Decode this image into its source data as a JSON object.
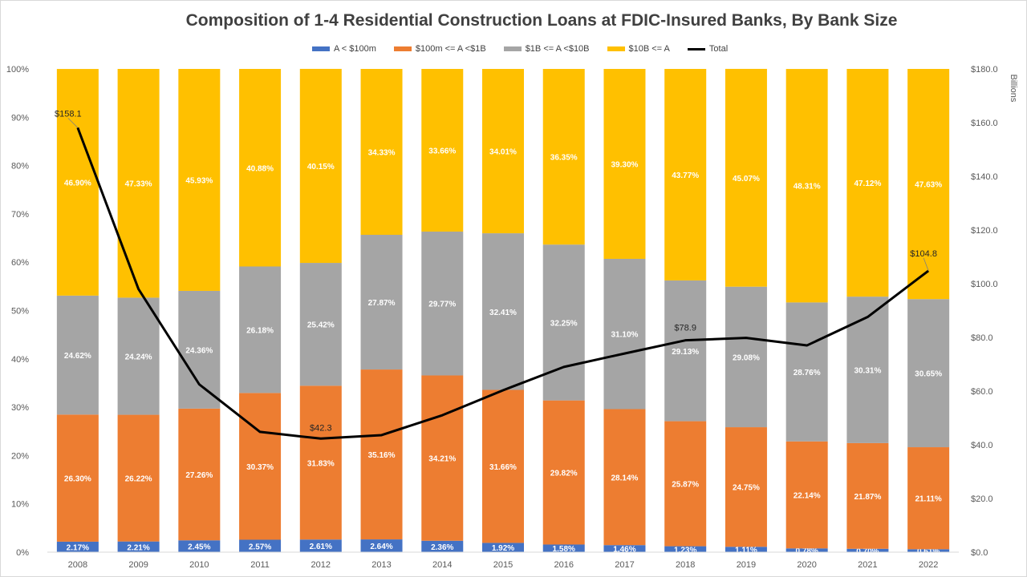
{
  "chart_data": {
    "type": "bar",
    "title": "Composition of 1-4 Residential Construction Loans at FDIC-Insured Banks, By Bank Size",
    "categories": [
      "2008",
      "2009",
      "2010",
      "2011",
      "2012",
      "2013",
      "2014",
      "2015",
      "2016",
      "2017",
      "2018",
      "2019",
      "2020",
      "2021",
      "2022"
    ],
    "series": [
      {
        "name": "A < $100m",
        "color": "#4472C4",
        "labels": [
          "2.17%",
          "2.21%",
          "2.45%",
          "2.57%",
          "2.61%",
          "2.64%",
          "2.36%",
          "1.92%",
          "1.58%",
          "1.46%",
          "1.23%",
          "1.11%",
          "0.78%",
          "0.70%",
          "0.61%"
        ],
        "values": [
          2.17,
          2.21,
          2.45,
          2.57,
          2.61,
          2.64,
          2.36,
          1.92,
          1.58,
          1.46,
          1.23,
          1.11,
          0.78,
          0.7,
          0.61
        ]
      },
      {
        "name": "$100m <= A <$1B",
        "color": "#ED7D31",
        "labels": [
          "26.30%",
          "26.22%",
          "27.26%",
          "30.37%",
          "31.83%",
          "35.16%",
          "34.21%",
          "31.66%",
          "29.82%",
          "28.14%",
          "25.87%",
          "24.75%",
          "22.14%",
          "21.87%",
          "21.11%"
        ],
        "values": [
          26.3,
          26.22,
          27.26,
          30.37,
          31.83,
          35.16,
          34.21,
          31.66,
          29.82,
          28.14,
          25.87,
          24.75,
          22.14,
          21.87,
          21.11
        ]
      },
      {
        "name": "$1B <= A <$10B",
        "color": "#A5A5A5",
        "labels": [
          "24.62%",
          "24.24%",
          "24.36%",
          "26.18%",
          "25.42%",
          "27.87%",
          "29.77%",
          "32.41%",
          "32.25%",
          "31.10%",
          "29.13%",
          "29.08%",
          "28.76%",
          "30.31%",
          "30.65%"
        ],
        "values": [
          24.62,
          24.24,
          24.36,
          26.18,
          25.42,
          27.87,
          29.77,
          32.41,
          32.25,
          31.1,
          29.13,
          29.08,
          28.76,
          30.31,
          30.65
        ]
      },
      {
        "name": "$10B <= A",
        "color": "#FFC000",
        "labels": [
          "46.90%",
          "47.33%",
          "45.93%",
          "40.88%",
          "40.15%",
          "34.33%",
          "33.66%",
          "34.01%",
          "36.35%",
          "39.30%",
          "43.77%",
          "45.07%",
          "48.31%",
          "47.12%",
          "47.63%"
        ],
        "values": [
          46.9,
          47.33,
          45.93,
          40.88,
          40.15,
          34.33,
          33.66,
          34.01,
          36.35,
          39.3,
          43.77,
          45.07,
          48.31,
          47.12,
          47.63
        ]
      }
    ],
    "line": {
      "name": "Total",
      "color": "#000000",
      "values": [
        158.1,
        98.0,
        62.5,
        44.8,
        42.3,
        43.6,
        51.0,
        60.3,
        69.0,
        74.0,
        78.9,
        79.8,
        77.0,
        87.6,
        104.8
      ],
      "annotations": [
        {
          "index": 0,
          "text": "$158.1"
        },
        {
          "index": 4,
          "text": "$42.3"
        },
        {
          "index": 10,
          "text": "$78.9"
        },
        {
          "index": 14,
          "text": "$104.8"
        }
      ]
    },
    "y_left": {
      "min": 0,
      "max": 100,
      "ticks": [
        "0%",
        "10%",
        "20%",
        "30%",
        "40%",
        "50%",
        "60%",
        "70%",
        "80%",
        "90%",
        "100%"
      ]
    },
    "y_right": {
      "min": 0,
      "max": 180,
      "ticks": [
        "$0.0",
        "$20.0",
        "$40.0",
        "$60.0",
        "$80.0",
        "$100.0",
        "$120.0",
        "$140.0",
        "$160.0",
        "$180.0"
      ],
      "unit_label": "Billions"
    },
    "legend_position": "top",
    "grid": false
  }
}
